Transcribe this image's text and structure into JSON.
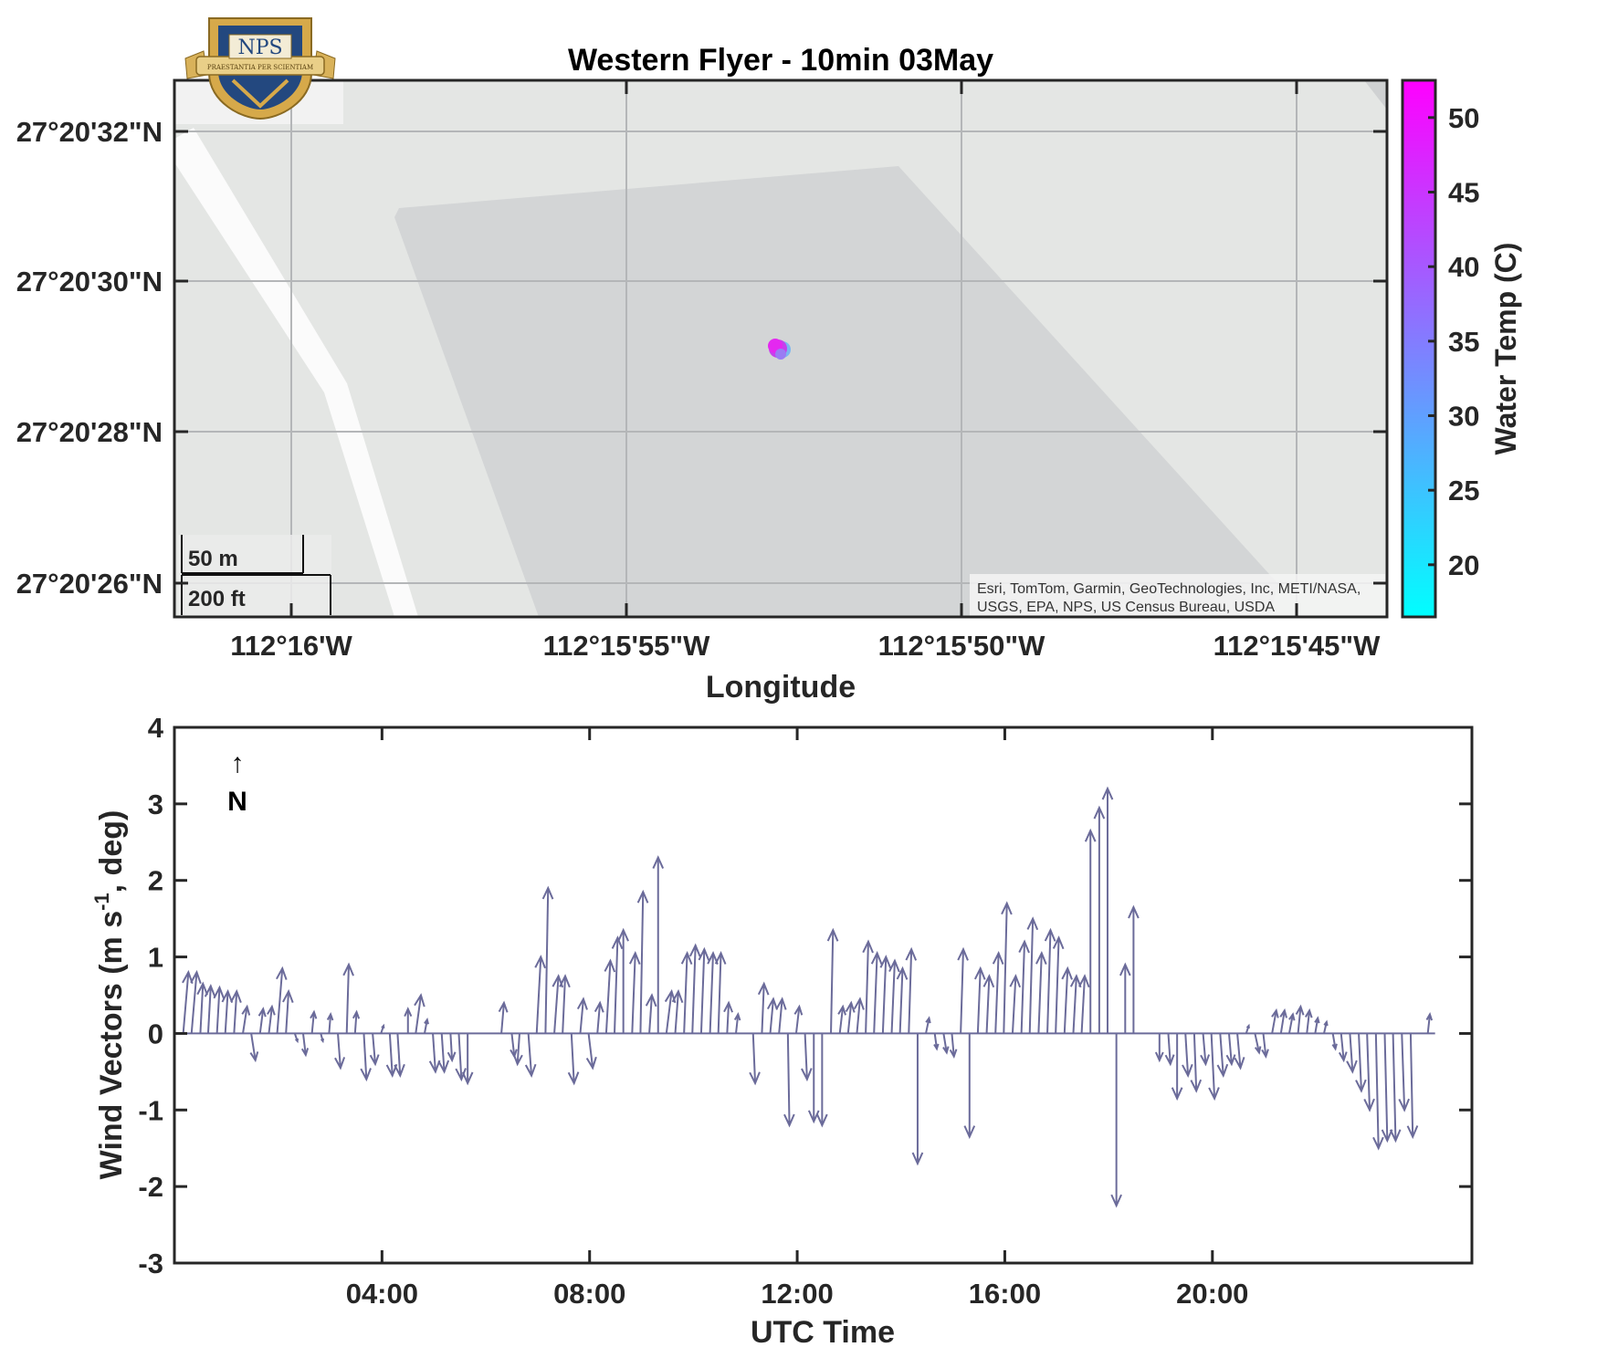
{
  "logo": {
    "text": "NPS",
    "motto": "PRAESTANTIA PER SCIENTIAM"
  },
  "map": {
    "title": "Western Flyer - 10min 03May",
    "xlabel": "Longitude",
    "lat_ticks": [
      "27°20'32\"N",
      "27°20'30\"N",
      "27°20'28\"N",
      "27°20'26\"N"
    ],
    "lon_ticks": [
      "112°16'W",
      "112°15'55\"W",
      "112°15'50\"W",
      "112°15'45\"W"
    ],
    "scalebar": {
      "metric": "50 m",
      "imperial": "200 ft"
    },
    "attribution": [
      "Esri, TomTom, Garmin, GeoTechnologies, Inc, METI/NASA,",
      "USGS, EPA, NPS, US Census Bureau, USDA"
    ],
    "colorbar": {
      "label": "Water Temp (C)",
      "ticks": [
        "20",
        "25",
        "30",
        "35",
        "40",
        "45",
        "50"
      ],
      "range": [
        16.5,
        52.5
      ],
      "colors": [
        "#00ffff",
        "#ff00ff"
      ]
    }
  },
  "chart_data": {
    "type": "quiver",
    "ylabel_main": "Wind Vectors (m s",
    "ylabel_sup": "-1",
    "ylabel_end": ", deg)",
    "xlabel": "UTC Time",
    "north_arrow": {
      "arrow": "↑",
      "label": "N"
    },
    "xlim_hours": [
      0,
      25
    ],
    "ylim": [
      -3,
      4
    ],
    "xticks": [
      "04:00",
      "08:00",
      "12:00",
      "16:00",
      "20:00"
    ],
    "yticks": [
      "-3",
      "-2",
      "-1",
      "0",
      "1",
      "2",
      "3",
      "4"
    ],
    "color": "#6b6b9a",
    "vectors": [
      [
        0.17,
        0.1,
        0.8
      ],
      [
        0.33,
        0.1,
        0.8
      ],
      [
        0.5,
        0.05,
        0.65
      ],
      [
        0.65,
        0.05,
        0.62
      ],
      [
        0.82,
        0.05,
        0.6
      ],
      [
        0.98,
        0.05,
        0.55
      ],
      [
        1.15,
        0.05,
        0.55
      ],
      [
        1.32,
        0.08,
        0.35
      ],
      [
        1.48,
        0.08,
        -0.35
      ],
      [
        1.65,
        0.06,
        0.32
      ],
      [
        1.82,
        0.06,
        0.35
      ],
      [
        1.98,
        0.1,
        0.85
      ],
      [
        2.15,
        0.05,
        0.55
      ],
      [
        2.32,
        0.05,
        -0.1
      ],
      [
        2.48,
        0.05,
        -0.28
      ],
      [
        2.65,
        0.04,
        0.28
      ],
      [
        2.82,
        0.04,
        -0.1
      ],
      [
        2.98,
        0.03,
        0.25
      ],
      [
        3.15,
        0.05,
        -0.45
      ],
      [
        3.32,
        0.04,
        0.9
      ],
      [
        3.48,
        0.03,
        0.28
      ],
      [
        3.65,
        0.05,
        -0.6
      ],
      [
        3.82,
        0.05,
        -0.4
      ],
      [
        3.98,
        0.05,
        0.1
      ],
      [
        4.15,
        0.05,
        -0.55
      ],
      [
        4.3,
        0.05,
        -0.55
      ],
      [
        4.5,
        0.0,
        0.32
      ],
      [
        4.65,
        0.1,
        0.5
      ],
      [
        4.82,
        0.05,
        0.18
      ],
      [
        4.98,
        0.05,
        -0.5
      ],
      [
        5.15,
        0.05,
        -0.5
      ],
      [
        5.32,
        0.03,
        -0.35
      ],
      [
        5.48,
        0.05,
        -0.6
      ],
      [
        5.65,
        0.0,
        -0.65
      ],
      [
        6.3,
        0.05,
        0.4
      ],
      [
        6.5,
        0.05,
        -0.3
      ],
      [
        6.65,
        -0.04,
        -0.4
      ],
      [
        6.82,
        0.06,
        -0.55
      ],
      [
        6.98,
        0.08,
        1.0
      ],
      [
        7.15,
        0.05,
        1.9
      ],
      [
        7.32,
        0.08,
        0.75
      ],
      [
        7.48,
        0.05,
        0.75
      ],
      [
        7.65,
        0.05,
        -0.65
      ],
      [
        7.82,
        0.06,
        0.45
      ],
      [
        7.98,
        0.08,
        -0.45
      ],
      [
        8.15,
        0.05,
        0.4
      ],
      [
        8.32,
        0.08,
        0.95
      ],
      [
        8.48,
        0.06,
        1.25
      ],
      [
        8.65,
        0.0,
        1.35
      ],
      [
        8.82,
        0.06,
        1.05
      ],
      [
        8.98,
        0.05,
        1.85
      ],
      [
        9.15,
        0.05,
        0.5
      ],
      [
        9.32,
        0.0,
        2.3
      ],
      [
        9.48,
        0.1,
        0.55
      ],
      [
        9.65,
        0.06,
        0.55
      ],
      [
        9.82,
        0.06,
        1.05
      ],
      [
        9.98,
        0.06,
        1.15
      ],
      [
        10.15,
        0.06,
        1.1
      ],
      [
        10.32,
        0.06,
        1.05
      ],
      [
        10.48,
        0.05,
        1.05
      ],
      [
        10.65,
        0.03,
        0.4
      ],
      [
        10.82,
        0.04,
        0.25
      ],
      [
        11.15,
        0.04,
        -0.65
      ],
      [
        11.32,
        0.04,
        0.65
      ],
      [
        11.48,
        0.06,
        0.45
      ],
      [
        11.65,
        0.06,
        0.45
      ],
      [
        11.82,
        0.03,
        -1.2
      ],
      [
        11.98,
        0.06,
        0.35
      ],
      [
        12.15,
        0.04,
        -0.6
      ],
      [
        12.32,
        0.0,
        -1.15
      ],
      [
        12.48,
        0.0,
        -1.2
      ],
      [
        12.65,
        0.04,
        1.35
      ],
      [
        12.82,
        0.06,
        0.35
      ],
      [
        12.98,
        0.06,
        0.4
      ],
      [
        13.15,
        0.06,
        0.45
      ],
      [
        13.32,
        0.05,
        1.2
      ],
      [
        13.48,
        0.06,
        1.05
      ],
      [
        13.65,
        0.06,
        1.0
      ],
      [
        13.82,
        0.06,
        0.95
      ],
      [
        13.98,
        0.05,
        0.85
      ],
      [
        14.15,
        0.05,
        1.1
      ],
      [
        14.32,
        0.0,
        -1.7
      ],
      [
        14.48,
        0.06,
        0.2
      ],
      [
        14.65,
        0.04,
        -0.2
      ],
      [
        14.82,
        0.06,
        -0.25
      ],
      [
        14.98,
        0.04,
        -0.3
      ],
      [
        15.15,
        0.05,
        1.1
      ],
      [
        15.32,
        0.0,
        -1.35
      ],
      [
        15.48,
        0.05,
        0.85
      ],
      [
        15.65,
        0.05,
        0.75
      ],
      [
        15.82,
        0.06,
        1.05
      ],
      [
        15.98,
        0.06,
        1.7
      ],
      [
        16.15,
        0.06,
        0.75
      ],
      [
        16.32,
        0.06,
        1.2
      ],
      [
        16.48,
        0.06,
        1.5
      ],
      [
        16.65,
        0.06,
        1.05
      ],
      [
        16.82,
        0.06,
        1.35
      ],
      [
        16.98,
        0.06,
        1.25
      ],
      [
        17.15,
        0.06,
        0.85
      ],
      [
        17.32,
        0.06,
        0.75
      ],
      [
        17.48,
        0.06,
        0.75
      ],
      [
        17.65,
        0.0,
        2.65
      ],
      [
        17.82,
        0.0,
        2.95
      ],
      [
        17.98,
        0.0,
        3.2
      ],
      [
        18.15,
        0.0,
        -2.25
      ],
      [
        18.32,
        0.0,
        0.9
      ],
      [
        18.48,
        0.0,
        1.65
      ],
      [
        18.98,
        0.0,
        -0.35
      ],
      [
        19.15,
        0.04,
        -0.4
      ],
      [
        19.32,
        0.0,
        -0.85
      ],
      [
        19.48,
        0.05,
        -0.55
      ],
      [
        19.65,
        0.04,
        -0.75
      ],
      [
        19.82,
        0.05,
        -0.4
      ],
      [
        19.98,
        0.06,
        -0.85
      ],
      [
        20.15,
        0.06,
        -0.55
      ],
      [
        20.32,
        0.05,
        -0.4
      ],
      [
        20.48,
        0.06,
        -0.45
      ],
      [
        20.65,
        0.05,
        0.1
      ],
      [
        20.82,
        0.08,
        -0.25
      ],
      [
        20.98,
        0.05,
        -0.3
      ],
      [
        21.15,
        0.08,
        0.3
      ],
      [
        21.32,
        0.07,
        0.3
      ],
      [
        21.48,
        0.07,
        0.25
      ],
      [
        21.65,
        0.05,
        0.35
      ],
      [
        21.82,
        0.05,
        0.3
      ],
      [
        21.98,
        0.05,
        0.2
      ],
      [
        22.15,
        0.05,
        0.15
      ],
      [
        22.32,
        0.05,
        -0.2
      ],
      [
        22.48,
        0.05,
        -0.35
      ],
      [
        22.65,
        0.05,
        -0.5
      ],
      [
        22.82,
        0.05,
        -0.75
      ],
      [
        22.98,
        0.05,
        -1.0
      ],
      [
        23.15,
        0.05,
        -1.5
      ],
      [
        23.32,
        0.05,
        -1.4
      ],
      [
        23.48,
        0.05,
        -1.4
      ],
      [
        23.65,
        0.05,
        -1.0
      ],
      [
        23.82,
        0.04,
        -1.35
      ],
      [
        24.15,
        0.04,
        0.25
      ]
    ]
  }
}
